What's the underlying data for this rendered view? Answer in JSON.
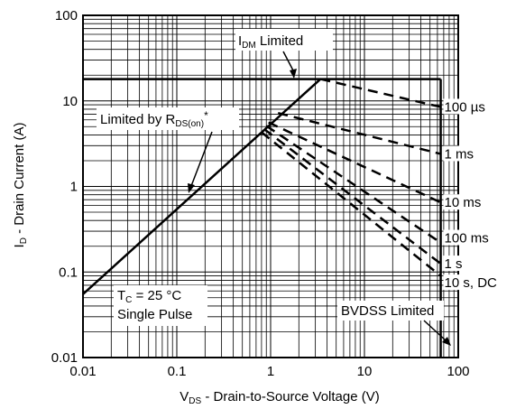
{
  "chart_data": {
    "type": "line",
    "x_scale": "log",
    "y_scale": "log",
    "xlim": [
      0.01,
      100
    ],
    "ylim": [
      0.01,
      100
    ],
    "grid": true,
    "x_ticks": [
      "0.01",
      "0.1",
      "1",
      "10",
      "100"
    ],
    "y_ticks": [
      "100",
      "10",
      "1",
      "0.1",
      "0.01"
    ],
    "xlabel": {
      "main": "V",
      "sub": "DS",
      "rest": " - Drain-to-Source Voltage (V)"
    },
    "ylabel": {
      "main": "I",
      "sub": "D",
      "rest": " - Drain Current (A)"
    },
    "annotations": {
      "idm": {
        "main": "I",
        "sub": "DM",
        "rest": " Limited"
      },
      "rds": {
        "main": "Limited by R",
        "sub": "DS(on)",
        "rest": "*"
      },
      "tc": {
        "main": "T",
        "sub": "C",
        "rest": " = 25 °C"
      },
      "pulse": "Single Pulse",
      "bvdss": "BVDSS Limited"
    },
    "limits": {
      "idm_current": 18,
      "bvdss_voltage": 65,
      "rds_line": [
        {
          "x": 0.01,
          "y": 0.055
        },
        {
          "x": 3.4,
          "y": 18
        }
      ]
    },
    "series": [
      {
        "name": "100 µs",
        "label": "100 µs",
        "line": [
          {
            "x": 3.4,
            "y": 18
          },
          {
            "x": 65,
            "y": 8.5
          }
        ],
        "label_y": 8.5
      },
      {
        "name": "1 ms",
        "label": "1 ms",
        "line": [
          {
            "x": 1.2,
            "y": 7.2
          },
          {
            "x": 65,
            "y": 2.4
          }
        ],
        "label_y": 2.4
      },
      {
        "name": "10 ms",
        "label": "10 ms",
        "line": [
          {
            "x": 0.95,
            "y": 5.6
          },
          {
            "x": 65,
            "y": 0.65
          }
        ],
        "label_y": 0.65
      },
      {
        "name": "100 ms",
        "label": "100 ms",
        "line": [
          {
            "x": 0.9,
            "y": 5.1
          },
          {
            "x": 65,
            "y": 0.22
          }
        ],
        "label_y": 0.25
      },
      {
        "name": "1 s",
        "label": "1 s",
        "line": [
          {
            "x": 0.85,
            "y": 4.7
          },
          {
            "x": 65,
            "y": 0.125
          }
        ],
        "label_y": 0.125
      },
      {
        "name": "10 s, DC",
        "label": "10 s, DC",
        "line": [
          {
            "x": 0.8,
            "y": 4.3
          },
          {
            "x": 65,
            "y": 0.09
          }
        ],
        "label_y": 0.075
      }
    ]
  }
}
